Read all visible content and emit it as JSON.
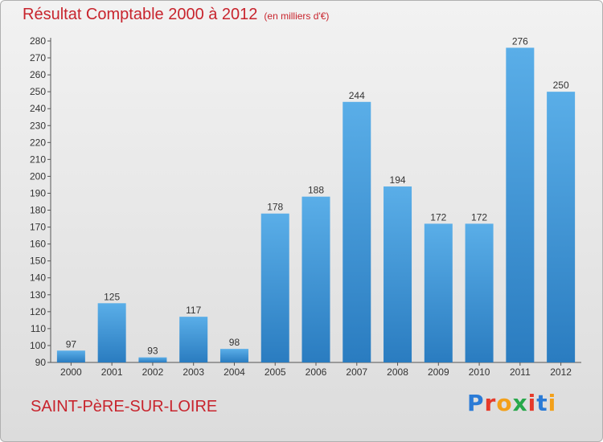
{
  "header": {
    "title": "Résultat Comptable 2000 à 2012",
    "subtitle": "(en milliers d'€)"
  },
  "footer": {
    "commune": "SAINT-PèRE-SUR-LOIRE",
    "logo": "Proxiti"
  },
  "colors": {
    "title": "#c8242d",
    "bar_light": "#5aaee8",
    "bar_dark": "#2a7cc0",
    "logo_letters": [
      "#2b7bd6",
      "#e63a2a",
      "#f3a019",
      "#27a84a",
      "#e63a2a",
      "#2b7bd6",
      "#f3a019"
    ]
  },
  "chart_data": {
    "type": "bar",
    "title": "Résultat Comptable 2000 à 2012",
    "subtitle": "(en milliers d'€)",
    "categories": [
      "2000",
      "2001",
      "2002",
      "2003",
      "2004",
      "2005",
      "2006",
      "2007",
      "2008",
      "2009",
      "2010",
      "2011",
      "2012"
    ],
    "values": [
      97,
      125,
      93,
      117,
      98,
      178,
      188,
      244,
      194,
      172,
      172,
      276,
      250
    ],
    "ylim": [
      90,
      280
    ],
    "ytick_step": 10,
    "grid": false
  }
}
